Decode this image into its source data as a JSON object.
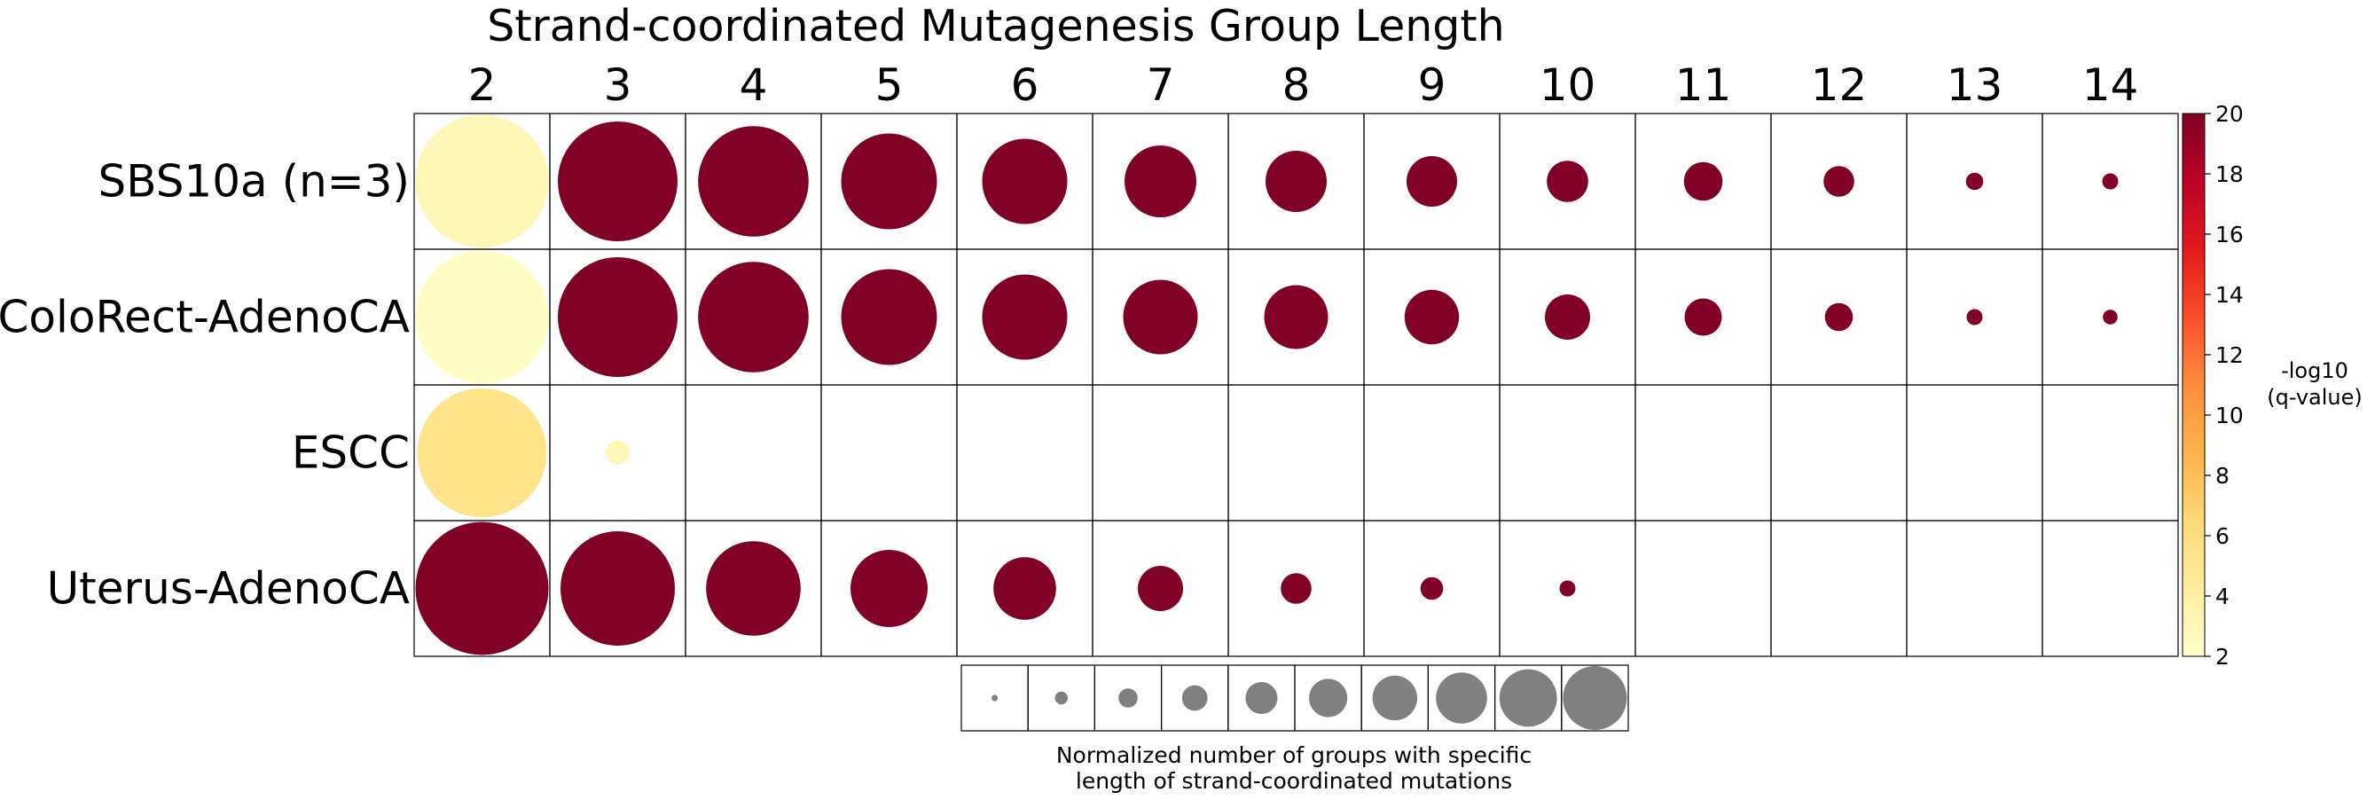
{
  "chart_data": {
    "type": "bubble-grid",
    "title": "Strand-coordinated Mutagenesis Group Length",
    "x_categories": [
      "2",
      "3",
      "4",
      "5",
      "6",
      "7",
      "8",
      "9",
      "10",
      "11",
      "12",
      "13",
      "14"
    ],
    "rows": [
      {
        "label": "SBS10a (n=3)",
        "sizes": [
          1.0,
          0.9,
          0.83,
          0.72,
          0.64,
          0.54,
          0.46,
          0.38,
          0.31,
          0.29,
          0.23,
          0.13,
          0.12
        ],
        "qvals": [
          3.0,
          20,
          20,
          20,
          20,
          20,
          20,
          20,
          20,
          20,
          20,
          20,
          20
        ]
      },
      {
        "label": "ColoRect-AdenoCA",
        "sizes": [
          1.0,
          0.9,
          0.83,
          0.72,
          0.64,
          0.56,
          0.48,
          0.41,
          0.34,
          0.28,
          0.21,
          0.12,
          0.11
        ],
        "qvals": [
          2.3,
          20,
          20,
          20,
          20,
          20,
          20,
          20,
          20,
          20,
          20,
          20,
          20
        ]
      },
      {
        "label": "ESCC",
        "sizes": [
          0.97,
          0.18,
          null,
          null,
          null,
          null,
          null,
          null,
          null,
          null,
          null,
          null,
          null
        ],
        "qvals": [
          5.3,
          3.0,
          null,
          null,
          null,
          null,
          null,
          null,
          null,
          null,
          null,
          null,
          null
        ]
      },
      {
        "label": "Uterus-AdenoCA",
        "sizes": [
          1.0,
          0.86,
          0.71,
          0.58,
          0.47,
          0.34,
          0.23,
          0.17,
          0.12,
          null,
          null,
          null,
          null
        ],
        "qvals": [
          20,
          20,
          20,
          20,
          20,
          20,
          20,
          20,
          20,
          null,
          null,
          null,
          null
        ]
      }
    ],
    "colorbar": {
      "label_line1": "-log10",
      "label_line2": "(q-value)",
      "min": 2,
      "max": 20,
      "ticks": [
        "2",
        "4",
        "6",
        "8",
        "10",
        "12",
        "14",
        "16",
        "18",
        "20"
      ],
      "colormap": "YlOrRd"
    },
    "size_legend": {
      "sizes": [
        0.1,
        0.2,
        0.3,
        0.4,
        0.5,
        0.6,
        0.7,
        0.8,
        0.9,
        1.0
      ],
      "color": "#808080",
      "caption_line1": "Normalized number of groups with specific",
      "caption_line2": "length of strand-coordinated mutations"
    }
  }
}
